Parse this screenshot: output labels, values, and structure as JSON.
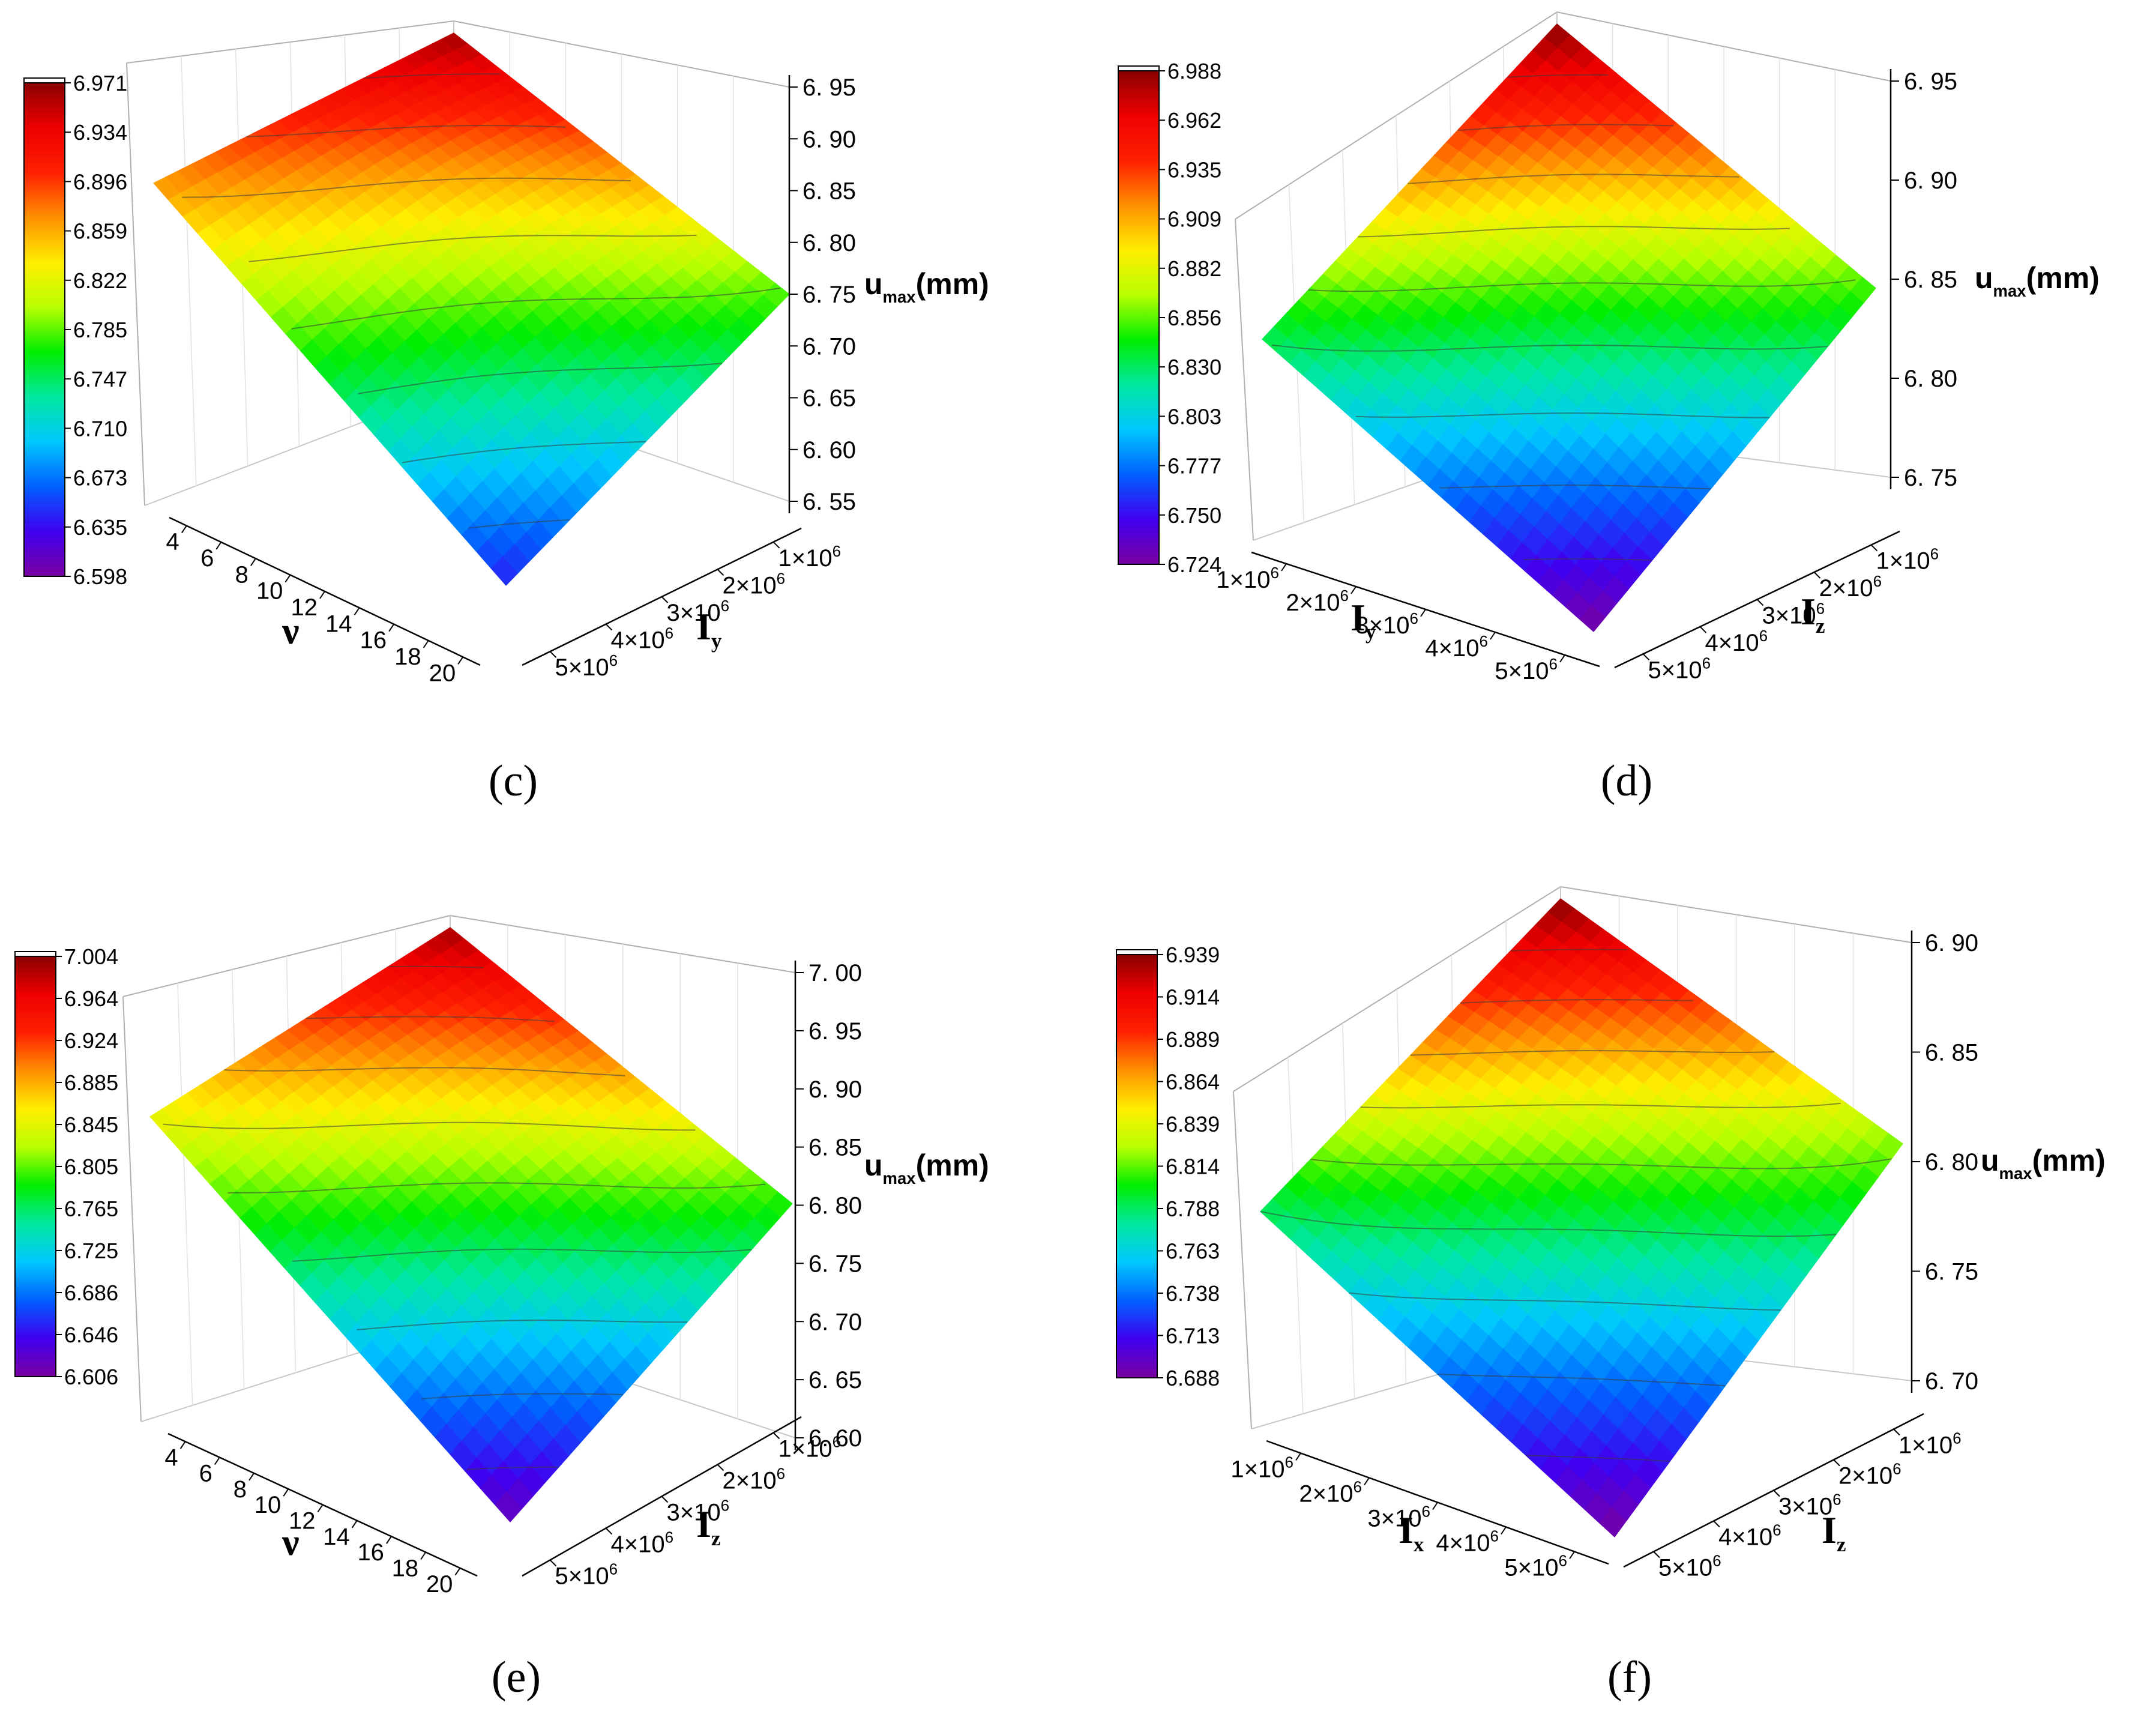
{
  "palette": [
    "#7a00a0",
    "#4000f0",
    "#0060ff",
    "#00c8ff",
    "#00e8a0",
    "#00ee00",
    "#b8ff00",
    "#ffee00",
    "#ff9000",
    "#ff2000",
    "#ee0000",
    "#8a0000"
  ],
  "chart_data": [
    {
      "type": "surface3d",
      "caption": "(c)",
      "x": {
        "name": "ν",
        "ticks": [
          "4",
          "6",
          "8",
          "10",
          "12",
          "14",
          "16",
          "18",
          "20"
        ]
      },
      "y": {
        "name": "I",
        "sub": "y",
        "ticks": [
          "1×10",
          "2×10",
          "3×10",
          "4×10",
          "5×10"
        ],
        "tick_exp": "6"
      },
      "z": {
        "name": "u",
        "sub": "max",
        "unit": "(mm)",
        "ticks": [
          "6. 95",
          "6. 90",
          "6. 85",
          "6. 80",
          "6. 75",
          "6. 70",
          "6. 65",
          "6. 60",
          "6. 55"
        ],
        "range": [
          6.55,
          6.98
        ]
      },
      "colorbar": [
        "6.971",
        "6.934",
        "6.896",
        "6.859",
        "6.822",
        "6.785",
        "6.747",
        "6.710",
        "6.673",
        "6.635",
        "6.598"
      ],
      "corners": {
        "left": 6.86,
        "top": 6.97,
        "right": 6.76,
        "bottom": 6.6
      }
    },
    {
      "type": "surface3d",
      "caption": "(d)",
      "x": {
        "name": "I",
        "sub": "y",
        "ticks": [
          "1×10",
          "2×10",
          "3×10",
          "4×10",
          "5×10"
        ],
        "tick_exp": "6"
      },
      "y": {
        "name": "I",
        "sub": "z",
        "ticks": [
          "1×10",
          "2×10",
          "3×10",
          "4×10",
          "5×10"
        ],
        "tick_exp": "6"
      },
      "z": {
        "name": "u",
        "sub": "max",
        "unit": "(mm)",
        "ticks": [
          "6. 95",
          "6. 90",
          "6. 85",
          "6. 80",
          "6. 75"
        ],
        "range": [
          6.72,
          6.99
        ]
      },
      "colorbar": [
        "6.988",
        "6.962",
        "6.935",
        "6.909",
        "6.882",
        "6.856",
        "6.830",
        "6.803",
        "6.777",
        "6.750",
        "6.724"
      ],
      "corners": {
        "left": 6.83,
        "top": 6.99,
        "right": 6.85,
        "bottom": 6.72
      }
    },
    {
      "type": "surface3d",
      "caption": "(e)",
      "x": {
        "name": "ν",
        "ticks": [
          "4",
          "6",
          "8",
          "10",
          "12",
          "14",
          "16",
          "18",
          "20"
        ]
      },
      "y": {
        "name": "I",
        "sub": "z",
        "ticks": [
          "1×10",
          "2×10",
          "3×10",
          "4×10",
          "5×10"
        ],
        "tick_exp": "6"
      },
      "z": {
        "name": "u",
        "sub": "max",
        "unit": "(mm)",
        "ticks": [
          "7. 00",
          "6. 95",
          "6. 90",
          "6. 85",
          "6. 80",
          "6. 75",
          "6. 70",
          "6. 65",
          "6. 60"
        ],
        "range": [
          6.6,
          7.01
        ]
      },
      "colorbar": [
        "7.004",
        "6.964",
        "6.924",
        "6.885",
        "6.845",
        "6.805",
        "6.765",
        "6.725",
        "6.686",
        "6.646",
        "6.606"
      ],
      "corners": {
        "left": 6.85,
        "top": 7.0,
        "right": 6.79,
        "bottom": 6.61
      }
    },
    {
      "type": "surface3d",
      "caption": "(f)",
      "x": {
        "name": "I",
        "sub": "x",
        "ticks": [
          "1×10",
          "2×10",
          "3×10",
          "4×10",
          "5×10"
        ],
        "tick_exp": "6"
      },
      "y": {
        "name": "I",
        "sub": "z",
        "ticks": [
          "1×10",
          "2×10",
          "3×10",
          "4×10",
          "5×10"
        ],
        "tick_exp": "6"
      },
      "z": {
        "name": "u",
        "sub": "max",
        "unit": "(mm)",
        "ticks": [
          "6. 90",
          "6. 85",
          "6. 80",
          "6. 75",
          "6. 70"
        ],
        "range": [
          6.69,
          6.94
        ]
      },
      "colorbar": [
        "6.939",
        "6.914",
        "6.889",
        "6.864",
        "6.839",
        "6.814",
        "6.788",
        "6.763",
        "6.738",
        "6.713",
        "6.688"
      ],
      "corners": {
        "left": 6.79,
        "top": 6.94,
        "right": 6.82,
        "bottom": 6.69
      }
    }
  ]
}
